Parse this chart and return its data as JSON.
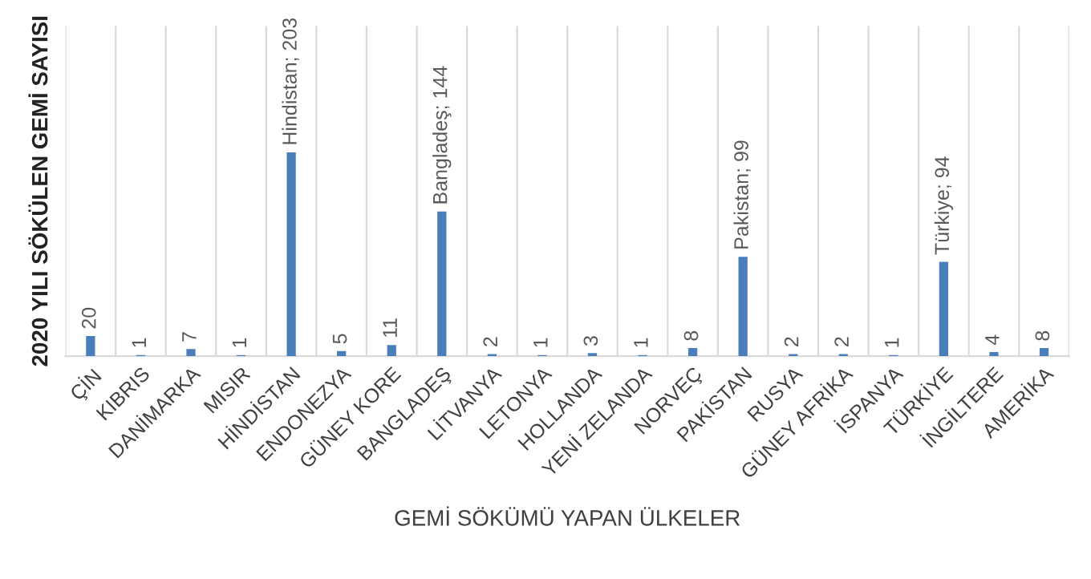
{
  "chart_data": {
    "type": "bar",
    "ylabel": "2020 YILI SÖKÜLEN GEMİ SAYISI",
    "xlabel": "GEMİ SÖKÜMÜ YAPAN ÜLKELER",
    "categories": [
      "ÇİN",
      "KIBRIS",
      "DANİMARKA",
      "MISIR",
      "HİNDİSTAN",
      "ENDONEZYA",
      "GÜNEY KORE",
      "BANGLADEŞ",
      "LİTVANYA",
      "LETONYA",
      "HOLLANDA",
      "YENİ ZELANDA",
      "NORVEÇ",
      "PAKİSTAN",
      "RUSYA",
      "GÜNEY AFRİKA",
      "İSPANYA",
      "TÜRKİYE",
      "İNGİLTERE",
      "AMERİKA"
    ],
    "values": [
      20,
      1,
      7,
      1,
      203,
      5,
      11,
      144,
      2,
      1,
      3,
      1,
      8,
      99,
      2,
      2,
      1,
      94,
      4,
      8
    ],
    "value_labels": [
      "20",
      "1",
      "7",
      "1",
      "Hindistan; 203",
      "5",
      "11",
      "Bangladeş; 144",
      "2",
      "1",
      "3",
      "1",
      "8",
      "Pakistan; 99",
      "2",
      "2",
      "1",
      "Türkiye; 94",
      "4",
      "8"
    ],
    "color": "#4a7ebb",
    "grid": "x",
    "legend": false
  }
}
